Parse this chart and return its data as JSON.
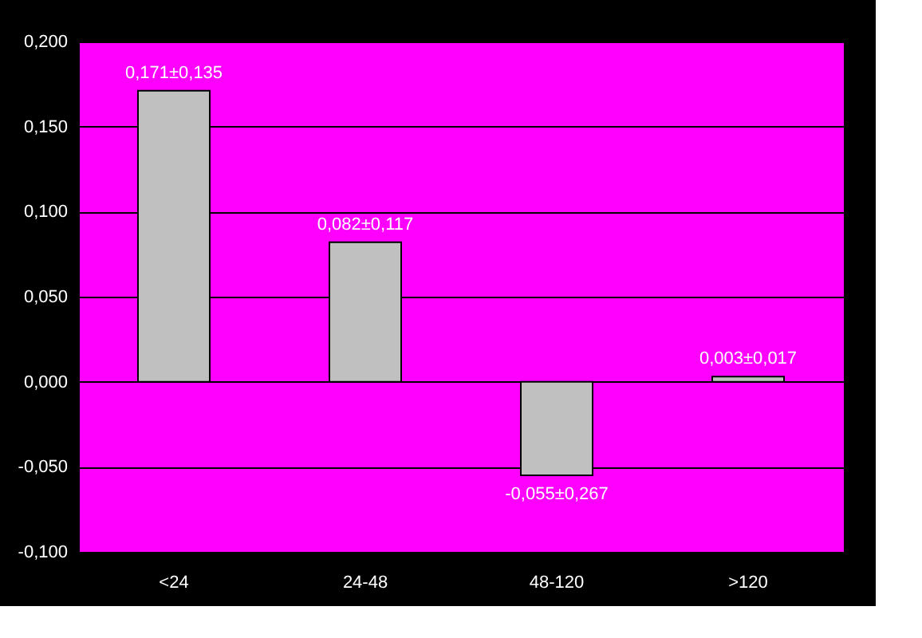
{
  "chart_data": {
    "type": "bar",
    "categories": [
      "<24",
      "24-48",
      "48-120",
      ">120"
    ],
    "values": [
      0.171,
      0.082,
      -0.055,
      0.003
    ],
    "value_labels": [
      "0,171±0,135",
      "0,082±0,117",
      "-0,055±0,267",
      "0,003±0,017"
    ],
    "color": "#c0c0c0",
    "ylim": [
      -0.1,
      0.2
    ],
    "yticks": [
      {
        "value": -0.1,
        "label": "-0,100"
      },
      {
        "value": -0.05,
        "label": "-0,050"
      },
      {
        "value": 0,
        "label": "0,000"
      },
      {
        "value": 0.05,
        "label": "0,050"
      },
      {
        "value": 0.1,
        "label": "0,100"
      },
      {
        "value": 0.15,
        "label": "0,150"
      },
      {
        "value": 0.2,
        "label": "0,200"
      }
    ],
    "grid": "y"
  }
}
